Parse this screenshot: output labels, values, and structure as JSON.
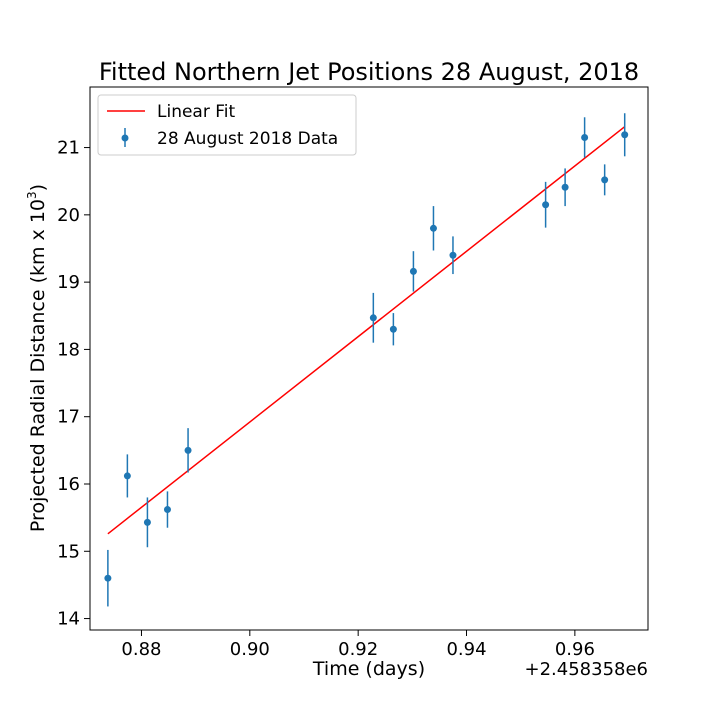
{
  "chart_data": {
    "type": "scatter",
    "title": "Fitted Northern Jet Positions 28 August, 2018",
    "xlabel": "Time (days)",
    "ylabel_prefix": "Projected Radial Distance (km x 10",
    "ylabel_sup": "3",
    "ylabel_suffix": ")",
    "x_offset_label": "+2.458358e6",
    "xlim": [
      0.8705,
      0.9735
    ],
    "ylim": [
      13.83,
      21.9
    ],
    "xticks": [
      0.88,
      0.9,
      0.92,
      0.94,
      0.96
    ],
    "xtick_labels": [
      "0.88",
      "0.90",
      "0.92",
      "0.94",
      "0.96"
    ],
    "yticks": [
      14,
      15,
      16,
      17,
      18,
      19,
      20,
      21
    ],
    "ytick_labels": [
      "14",
      "15",
      "16",
      "17",
      "18",
      "19",
      "20",
      "21"
    ],
    "grid": false,
    "legend_position": "upper-left",
    "series": [
      {
        "name": "28 August 2018 Data",
        "kind": "errorbar",
        "color": "#1f77b4",
        "x": [
          0.8738,
          0.8774,
          0.8811,
          0.8848,
          0.8886,
          0.9228,
          0.9265,
          0.9302,
          0.9339,
          0.9375,
          0.9546,
          0.9582,
          0.9618,
          0.9655,
          0.9692
        ],
        "y": [
          14.6,
          16.12,
          15.43,
          15.62,
          16.5,
          18.47,
          18.3,
          19.16,
          19.8,
          19.4,
          20.15,
          20.41,
          21.15,
          20.52,
          21.19
        ],
        "yerr": [
          0.42,
          0.32,
          0.37,
          0.27,
          0.33,
          0.37,
          0.24,
          0.3,
          0.33,
          0.28,
          0.34,
          0.28,
          0.3,
          0.23,
          0.32
        ]
      },
      {
        "name": "Linear Fit",
        "kind": "line",
        "color": "#ff0000",
        "x": [
          0.8738,
          0.9692
        ],
        "y": [
          15.26,
          21.31
        ]
      }
    ]
  }
}
